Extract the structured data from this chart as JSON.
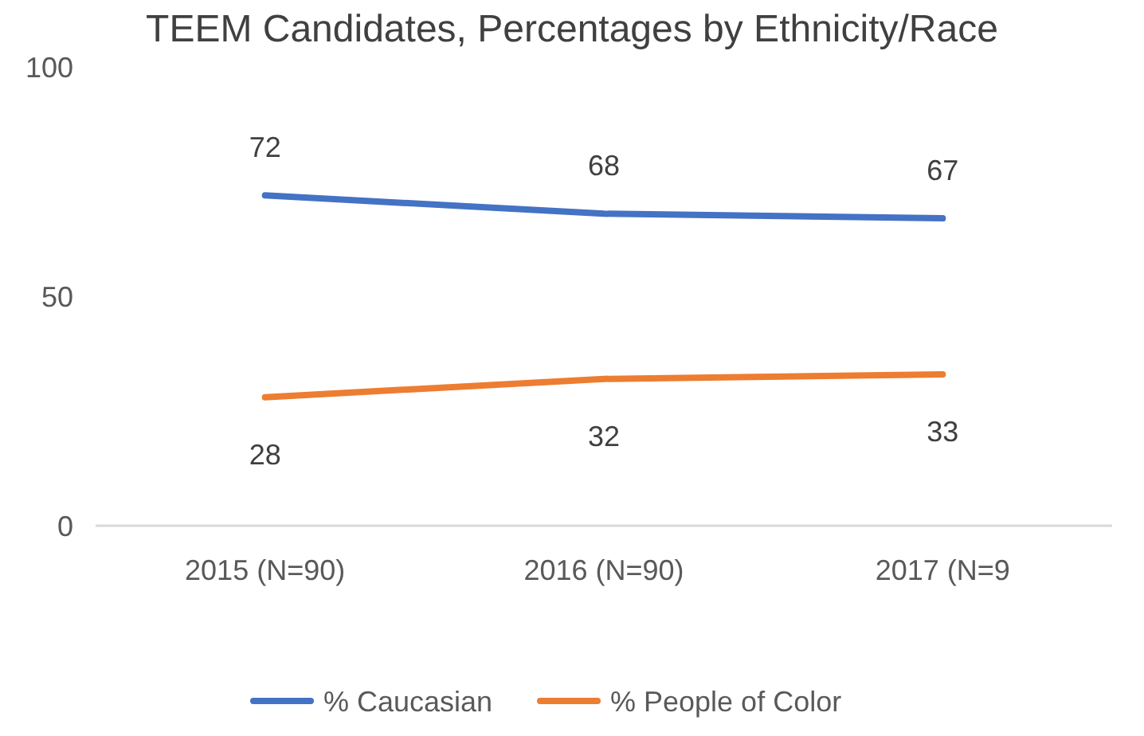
{
  "chart_data": {
    "type": "line",
    "title": "TEEM Candidates, Percentages by Ethnicity/Race",
    "categories": [
      "2015 (N=90)",
      "2016 (N=90)",
      "2017 (N=9"
    ],
    "series": [
      {
        "name": "% Caucasian",
        "color": "#4472c4",
        "values": [
          72,
          68,
          67
        ]
      },
      {
        "name": "% People of Color",
        "color": "#ed7d31",
        "values": [
          28,
          32,
          33
        ]
      }
    ],
    "ylim": [
      0,
      100
    ],
    "yticks": [
      0,
      50,
      100
    ],
    "grid": false,
    "legend": "bottom",
    "data_labels": true,
    "marker": "none"
  }
}
